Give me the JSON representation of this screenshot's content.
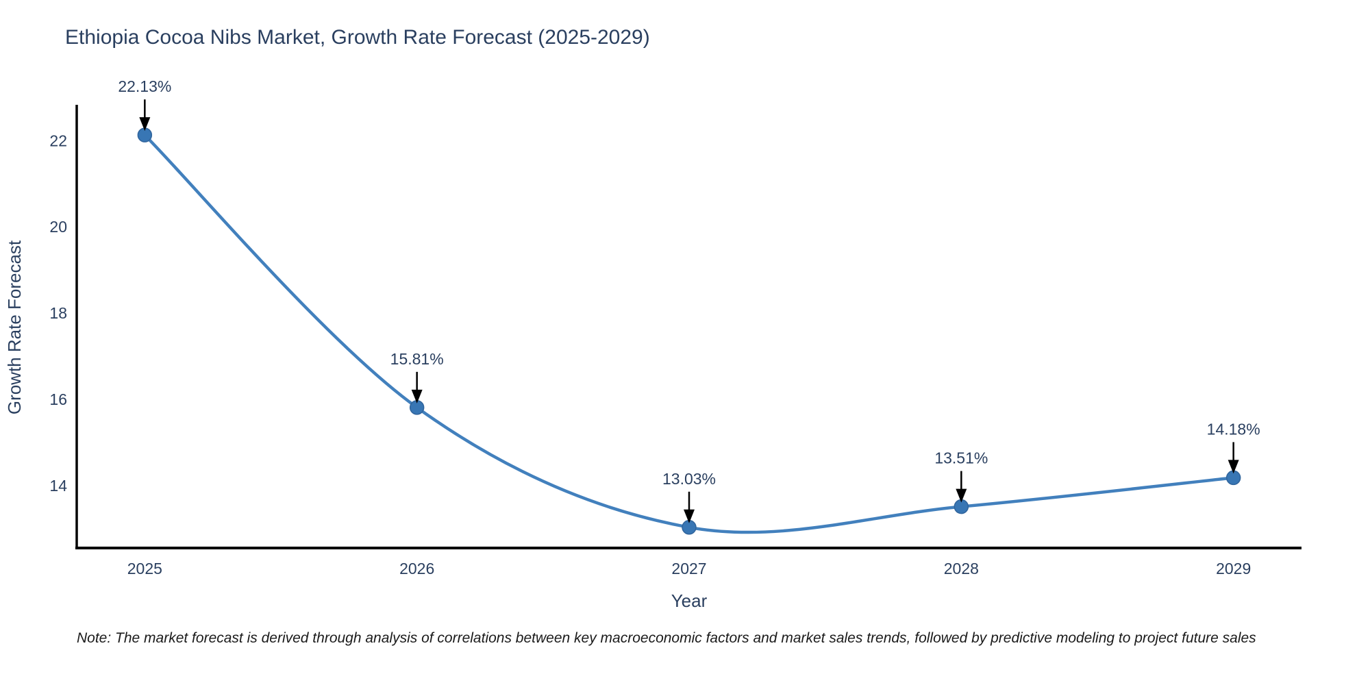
{
  "title": "Ethiopia Cocoa Nibs Market, Growth Rate Forecast (2025-2029)",
  "note": "Note: The market forecast is derived through analysis of correlations between key macroeconomic factors and market sales trends, followed by predictive modeling to project future sales",
  "chart_data": {
    "type": "line",
    "title": "Ethiopia Cocoa Nibs Market, Growth Rate Forecast (2025-2029)",
    "xlabel": "Year",
    "ylabel": "Growth Rate Forecast",
    "x": [
      2025,
      2026,
      2027,
      2028,
      2029
    ],
    "series": [
      {
        "name": "Growth Rate Forecast",
        "values": [
          22.13,
          15.81,
          13.03,
          13.51,
          14.18
        ]
      }
    ],
    "point_labels": [
      "22.13%",
      "15.81%",
      "13.03%",
      "13.51%",
      "14.18%"
    ],
    "xticks": [
      "2025",
      "2026",
      "2027",
      "2028",
      "2029"
    ],
    "yticks": [
      14,
      16,
      18,
      20,
      22
    ],
    "xlim": [
      2024.75,
      2029.25
    ],
    "ylim": [
      12.55,
      22.8
    ],
    "line_shape": "spline",
    "grid": false,
    "legend": "none",
    "annotations_have_arrows": true,
    "colors": {
      "line": "#4280bd",
      "marker": "#3876b4",
      "marker_edge": "#30649c",
      "arrow": "#000000",
      "text": "#2a3f5f",
      "axis": "#000000",
      "note_text": "#1a1a1a",
      "background": "#ffffff"
    }
  }
}
